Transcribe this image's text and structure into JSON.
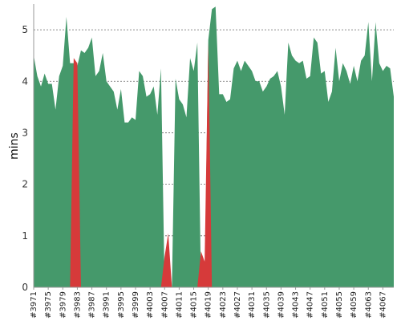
{
  "chart_data": {
    "type": "area",
    "ylabel": "mins",
    "ylim": [
      0,
      5.5
    ],
    "y_ticks": [
      0,
      1,
      2,
      3,
      4,
      5
    ],
    "grid": "horizontal dashed",
    "x_tick_step": 4,
    "x": [
      "#3971",
      "#3972",
      "#3973",
      "#3974",
      "#3975",
      "#3976",
      "#3977",
      "#3978",
      "#3979",
      "#3980",
      "#3981",
      "#3982",
      "#3983",
      "#3984",
      "#3985",
      "#3986",
      "#3987",
      "#3988",
      "#3989",
      "#3990",
      "#3991",
      "#3992",
      "#3993",
      "#3994",
      "#3995",
      "#3996",
      "#3997",
      "#3998",
      "#3999",
      "#4000",
      "#4001",
      "#4002",
      "#4003",
      "#4004",
      "#4005",
      "#4006",
      "#4007",
      "#4008",
      "#4009",
      "#4010",
      "#4011",
      "#4012",
      "#4013",
      "#4014",
      "#4015",
      "#4016",
      "#4017",
      "#4018",
      "#4019",
      "#4020",
      "#4021",
      "#4022",
      "#4023",
      "#4024",
      "#4025",
      "#4026",
      "#4027",
      "#4028",
      "#4029",
      "#4030",
      "#4031",
      "#4032",
      "#4033",
      "#4034",
      "#4035",
      "#4036",
      "#4037",
      "#4038",
      "#4039",
      "#4040",
      "#4041",
      "#4042",
      "#4043",
      "#4044",
      "#4045",
      "#4046",
      "#4047",
      "#4048",
      "#4049",
      "#4050",
      "#4051",
      "#4052",
      "#4053",
      "#4054",
      "#4055",
      "#4056",
      "#4057",
      "#4058",
      "#4059",
      "#4060",
      "#4061",
      "#4062",
      "#4063",
      "#4064",
      "#4065",
      "#4066",
      "#4067",
      "#4068",
      "#4069",
      "#4070"
    ],
    "series": [
      {
        "color": "#45996b",
        "values": [
          4.5,
          4.1,
          3.9,
          4.15,
          3.95,
          3.95,
          3.45,
          4.1,
          4.3,
          5.25,
          4.35,
          4.35,
          4.3,
          4.6,
          4.55,
          4.65,
          4.85,
          4.1,
          4.2,
          4.55,
          4.0,
          3.9,
          3.8,
          3.45,
          3.85,
          3.2,
          3.2,
          3.3,
          3.25,
          4.2,
          4.1,
          3.7,
          3.75,
          3.9,
          3.35,
          4.25,
          0.0,
          0.0,
          0.0,
          4.05,
          3.65,
          3.55,
          3.3,
          4.45,
          4.2,
          4.75,
          0.0,
          0.0,
          4.8,
          5.4,
          5.45,
          3.75,
          3.75,
          3.6,
          3.65,
          4.25,
          4.4,
          4.2,
          4.4,
          4.3,
          4.2,
          4.0,
          4.0,
          3.8,
          3.9,
          4.05,
          4.1,
          4.2,
          3.9,
          3.35,
          4.75,
          4.5,
          4.4,
          4.35,
          4.4,
          4.05,
          4.1,
          4.85,
          4.75,
          4.15,
          4.2,
          3.6,
          3.8,
          4.65,
          4.0,
          4.35,
          4.2,
          3.95,
          4.3,
          4.0,
          4.4,
          4.5,
          5.15,
          4.0,
          5.15,
          4.35,
          4.2,
          4.3,
          4.25,
          3.7
        ]
      },
      {
        "color": "#d63a3a",
        "values": [
          0,
          0,
          0,
          0,
          0,
          0,
          0,
          0,
          0,
          0,
          0,
          4.45,
          4.35,
          0,
          0,
          0,
          0,
          0,
          0,
          0,
          0,
          0,
          0,
          0,
          0,
          0,
          0,
          0,
          0,
          0,
          0,
          0,
          0,
          0,
          0,
          0,
          0.6,
          1.05,
          0,
          0,
          0,
          0,
          0,
          0,
          0,
          0,
          0.7,
          0.5,
          4.75,
          0,
          0,
          0,
          0,
          0,
          0,
          0,
          0,
          0,
          0,
          0,
          0,
          0,
          0,
          0,
          0,
          0,
          0,
          0,
          0,
          0,
          0,
          0,
          0,
          0,
          0,
          0,
          0,
          0,
          0,
          0,
          0,
          0,
          0,
          0,
          0,
          0,
          0,
          0,
          0,
          0,
          0,
          0,
          0,
          0,
          0,
          0,
          0,
          0,
          0,
          0
        ]
      }
    ]
  }
}
